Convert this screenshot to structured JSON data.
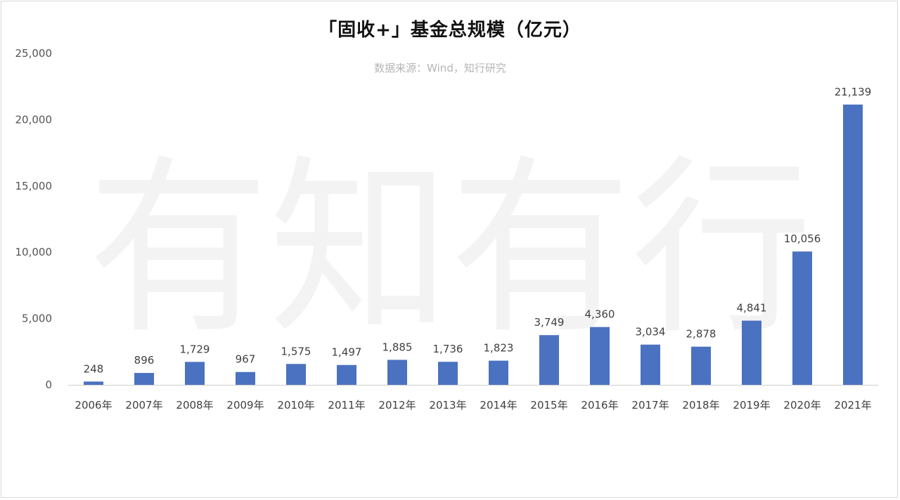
{
  "chart_data": {
    "type": "bar",
    "title": "「固收+」基金总规模（亿元）",
    "subtitle": "数据来源：Wind，知行研究",
    "watermark": "有知有行",
    "categories": [
      "2006年",
      "2007年",
      "2008年",
      "2009年",
      "2010年",
      "2011年",
      "2012年",
      "2013年",
      "2014年",
      "2015年",
      "2016年",
      "2017年",
      "2018年",
      "2019年",
      "2020年",
      "2021年"
    ],
    "values": [
      248,
      896,
      1729,
      967,
      1575,
      1497,
      1885,
      1736,
      1823,
      3749,
      4360,
      3034,
      2878,
      4841,
      10056,
      21139
    ],
    "data_labels": [
      "248",
      "896",
      "1,729",
      "967",
      "1,575",
      "1,497",
      "1,885",
      "1,736",
      "1,823",
      "3,749",
      "4,360",
      "3,034",
      "2,878",
      "4,841",
      "10,056",
      "21,139"
    ],
    "yticks": [
      0,
      5000,
      10000,
      15000,
      20000,
      25000
    ],
    "ytick_labels": [
      "0",
      "5,000",
      "10,000",
      "15,000",
      "20,000",
      "25,000"
    ],
    "ylim": [
      0,
      25000
    ],
    "xlabel": "",
    "ylabel": "",
    "grid": false,
    "legend": "none",
    "bar_color": "#4a72c0"
  }
}
